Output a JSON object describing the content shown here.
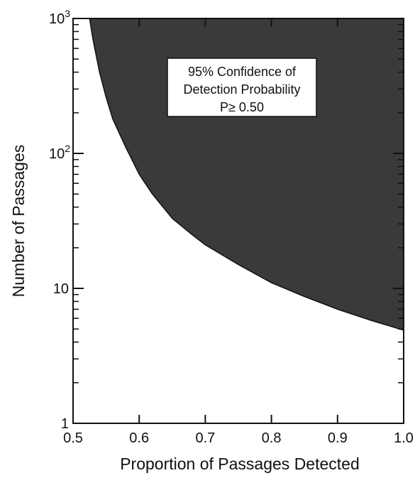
{
  "chart_data": {
    "type": "area",
    "xlabel": "Proportion of Passages Detected",
    "ylabel": "Number of Passages",
    "xlim": [
      0.5,
      1.0
    ],
    "ylim": [
      1,
      1000
    ],
    "y_scale": "log",
    "grid": false,
    "x_ticks": [
      "0.5",
      "0.6",
      "0.7",
      "0.8",
      "0.9",
      "1.0"
    ],
    "x_tick_values": [
      0.5,
      0.6,
      0.7,
      0.8,
      0.9,
      1.0
    ],
    "y_ticks": [
      {
        "value": 1,
        "base": "1",
        "exp": ""
      },
      {
        "value": 10,
        "base": "10",
        "exp": ""
      },
      {
        "value": 100,
        "base": "10",
        "exp": "2"
      },
      {
        "value": 1000,
        "base": "10",
        "exp": "3"
      }
    ],
    "annotation": {
      "lines": [
        "95% Confidence of",
        "Detection Probability",
        "P≥  0.50"
      ]
    },
    "fill_color": "#3a3a3a",
    "series": [
      {
        "x": [
          0.525,
          0.53,
          0.54,
          0.55,
          0.56,
          0.58,
          0.6,
          0.62,
          0.65,
          0.68,
          0.7,
          0.75,
          0.8,
          0.85,
          0.9,
          0.95,
          1.0
        ],
        "y": [
          1000,
          700,
          400,
          260,
          180,
          110,
          70,
          50,
          33,
          25,
          21,
          15,
          11,
          8.7,
          7.0,
          5.8,
          4.9
        ]
      }
    ]
  }
}
